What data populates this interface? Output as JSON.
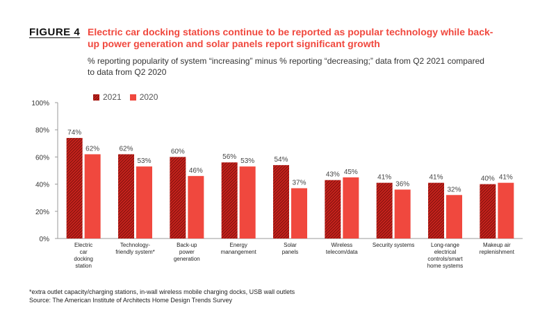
{
  "figure_label": "FIGURE 4",
  "title": "Electric car docking stations continue to be reported as popular technology while back-up power generation and solar panels report significant growth",
  "subtitle": "% reporting popularity of system “increasing” minus % reporting “decreasing;” data from Q2 2021 compared to data from Q2 2020",
  "colors": {
    "series_2021": "#b81d17",
    "series_2020": "#f0483e",
    "title": "#f0483e"
  },
  "chart_data": {
    "type": "bar",
    "categories": [
      "Electric car docking station",
      "Technology-friendly system*",
      "Back-up power generation",
      "Energy manangement",
      "Solar panels",
      "Wireless telecom/data",
      "Security systems",
      "Long-range electrical controls/smart home systems",
      "Makeup air replenishment"
    ],
    "category_lines": [
      [
        "Electric",
        "car",
        "docking",
        "station"
      ],
      [
        "Technology-",
        "friendly system*"
      ],
      [
        "Back-up",
        "power",
        "generation"
      ],
      [
        "Energy",
        "manangement"
      ],
      [
        "Solar",
        "panels"
      ],
      [
        "Wireless",
        "telecom/data"
      ],
      [
        "Security systems"
      ],
      [
        "Long-range",
        "electrical",
        "controls/smart",
        "home systems"
      ],
      [
        "Makeup air",
        "replenishment"
      ]
    ],
    "series": [
      {
        "name": "2021",
        "values": [
          74,
          62,
          60,
          56,
          54,
          43,
          41,
          41,
          40
        ],
        "labels": [
          "74%",
          "62%",
          "60%",
          "56%",
          "54%",
          "43%",
          "41%",
          "41%",
          "40%"
        ]
      },
      {
        "name": "2020",
        "values": [
          62,
          53,
          46,
          53,
          37,
          45,
          36,
          32,
          41
        ],
        "labels": [
          "62%",
          "53%",
          "46%",
          "53%",
          "37%",
          "45%",
          "36%",
          "32%",
          "41%"
        ]
      }
    ],
    "ylim": [
      0,
      100
    ],
    "y_ticks": [
      0,
      20,
      40,
      60,
      80,
      100
    ],
    "y_tick_labels": [
      "0%",
      "20%",
      "40%",
      "60%",
      "80%",
      "100%"
    ],
    "legend_position": "top-left",
    "grid": false
  },
  "footnotes": [
    "*extra outlet capacity/charging stations, in-wall wireless mobile charging docks, USB wall outlets",
    "Source: The American Institute of Architects Home Design Trends Survey"
  ]
}
